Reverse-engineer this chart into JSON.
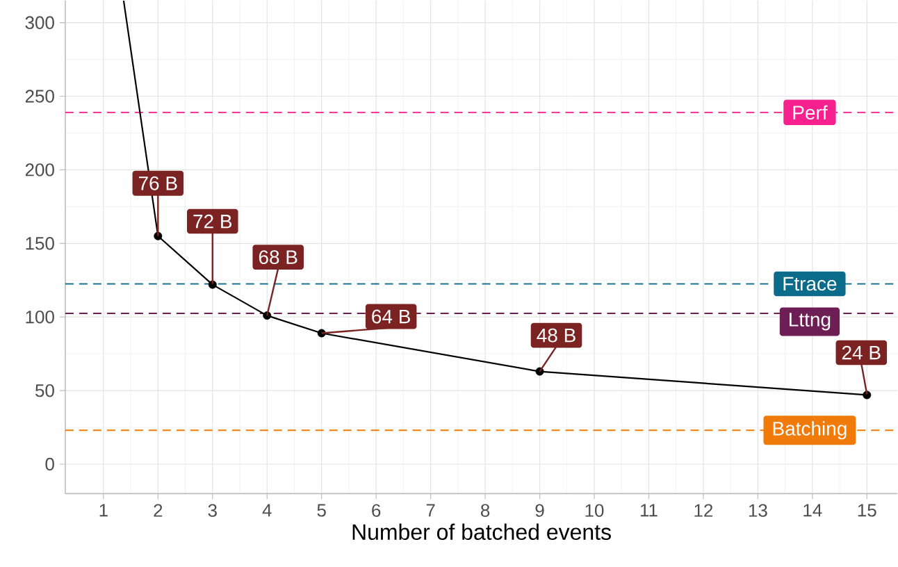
{
  "chart_data": {
    "type": "line",
    "xlabel": "Number of batched events",
    "xlim": [
      0.3,
      15.56
    ],
    "ylim": [
      -20,
      315
    ],
    "xticks": [
      1,
      2,
      3,
      4,
      5,
      6,
      7,
      8,
      9,
      10,
      11,
      12,
      13,
      14,
      15
    ],
    "yticks": [
      0,
      50,
      100,
      150,
      200,
      250,
      300
    ],
    "grid": true,
    "series": [
      {
        "color": "#000000",
        "marker": "none",
        "x": [
          1.37,
          2,
          3,
          4,
          5,
          9,
          15
        ],
        "values": [
          315,
          155,
          122,
          101,
          89,
          63,
          47
        ]
      },
      {
        "type": "scatter",
        "color": "#000000",
        "marker": "circle",
        "x": [
          2,
          3,
          4,
          5,
          9,
          15
        ],
        "values": [
          155,
          122,
          101,
          89,
          63,
          47
        ]
      }
    ],
    "ref_lines": [
      {
        "axis": "y",
        "value": 239,
        "label": "Perf",
        "color": "#f7208f",
        "line_style": "dashed"
      },
      {
        "axis": "y",
        "value": 122.5,
        "label": "Ftrace",
        "color": "#0b6b8a",
        "line_style": "dashed"
      },
      {
        "axis": "y",
        "value": 102.5,
        "label": "Lttng",
        "color": "#6d1f55",
        "line_style": "dashed"
      },
      {
        "axis": "y",
        "value": 23,
        "label": "Batching",
        "color": "#f07a0a",
        "line_style": "dashed"
      }
    ],
    "annotations": [
      {
        "text": "76 B",
        "x": 2,
        "y": 155
      },
      {
        "text": "72 B",
        "x": 3,
        "y": 122.5
      },
      {
        "text": "68 B",
        "x": 4,
        "y": 101
      },
      {
        "text": "64 B",
        "x": 5,
        "y": 89
      },
      {
        "text": "48 B",
        "x": 9,
        "y": 63
      },
      {
        "text": "24 B",
        "x": 15,
        "y": 47.5
      }
    ]
  }
}
